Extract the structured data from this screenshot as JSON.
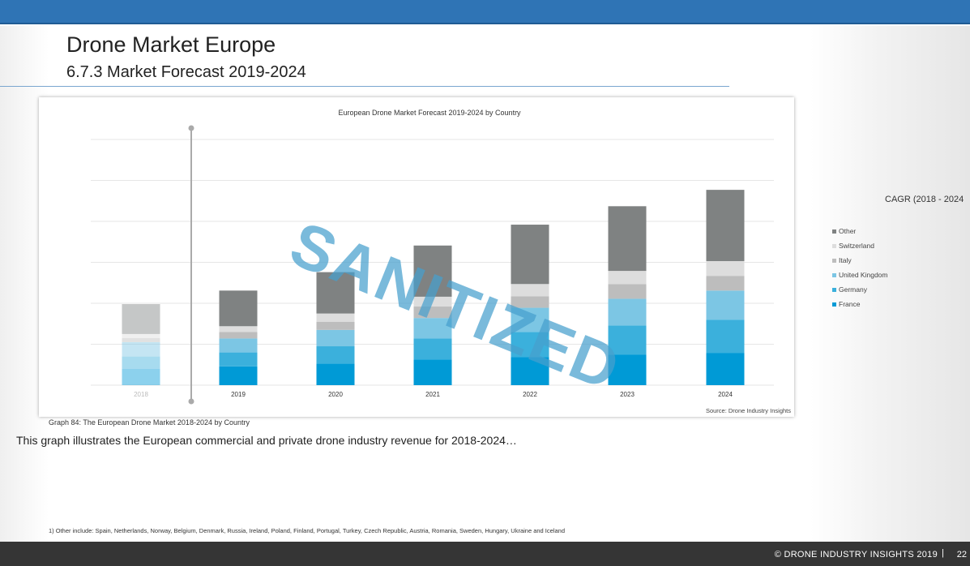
{
  "header": {
    "title": "Drone Market Europe",
    "subtitle": "6.7.3 Market Forecast 2019-2024"
  },
  "caption": "Graph 84: The European Drone Market 2018-2024 by Country",
  "description": "This graph illustrates the European commercial and private drone industry revenue for 2018-2024…",
  "footnote": "1) Other include: Spain, Netherlands, Norway, Belgium, Denmark, Russia, Ireland, Poland, Finland, Portugal, Turkey, Czech Republic, Austria, Romania, Sweden, Hungary, Ukraine and Iceland",
  "footer": {
    "copyright": "© DRONE INDUSTRY INSIGHTS 2019",
    "separator": "|",
    "page": "22"
  },
  "cagr_label": "CAGR (2018 - 2024",
  "watermark": "SANITIZED",
  "chart_data": {
    "type": "bar",
    "stacked": true,
    "title": "European  Drone  Market  Forecast 2019-2024  by Country",
    "source": "Source: Drone Industry Insights",
    "categories": [
      "2018",
      "2019",
      "2020",
      "2021",
      "2022",
      "2023",
      "2024"
    ],
    "ylim": [
      0,
      6
    ],
    "grid": true,
    "legend_position": "right",
    "series": [
      {
        "name": "France",
        "color": "#009ad6",
        "values": [
          0.4,
          0.46,
          0.53,
          0.63,
          0.69,
          0.75,
          0.79
        ]
      },
      {
        "name": "Germany",
        "color": "#3bb0dc",
        "values": [
          0.3,
          0.34,
          0.42,
          0.51,
          0.61,
          0.71,
          0.81
        ]
      },
      {
        "name": "United Kingdom",
        "color": "#7cc6e4",
        "values": [
          0.35,
          0.34,
          0.4,
          0.5,
          0.59,
          0.65,
          0.71
        ]
      },
      {
        "name": "Italy",
        "color": "#bdbdbd",
        "values": [
          0.1,
          0.16,
          0.2,
          0.28,
          0.28,
          0.36,
          0.36
        ]
      },
      {
        "name": "Switzerland",
        "color": "#dddddd",
        "values": [
          0.1,
          0.14,
          0.2,
          0.24,
          0.3,
          0.32,
          0.36
        ]
      },
      {
        "name": "Other",
        "color": "#7f8282",
        "values": [
          0.73,
          0.87,
          1.01,
          1.25,
          1.45,
          1.58,
          1.74
        ]
      }
    ]
  }
}
